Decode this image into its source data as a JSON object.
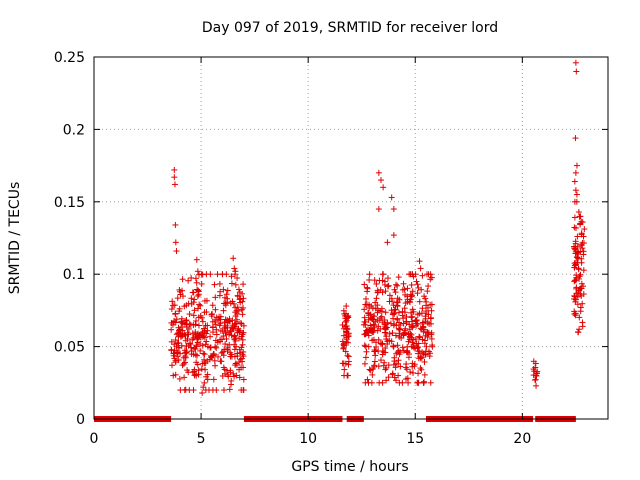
{
  "chart_data": {
    "type": "scatter",
    "title": "Day 097 of 2019, SRMTID for receiver lord",
    "xlabel": "GPS time / hours",
    "ylabel": "SRMTID / TECUs",
    "xlim": [
      0,
      24
    ],
    "ylim": [
      0,
      0.25
    ],
    "xticks": [
      0,
      5,
      10,
      15,
      20
    ],
    "xtick_labels": [
      "0",
      "5",
      "10",
      "15",
      "20"
    ],
    "yticks": [
      0,
      0.05,
      0.1,
      0.15,
      0.2,
      0.25
    ],
    "ytick_labels": [
      "0",
      "0.05",
      "0.1",
      "0.15",
      "0.2",
      "0.25"
    ],
    "grid": true,
    "marker": "+",
    "color": "#e00000",
    "zero_segments": [
      [
        0.0,
        3.6
      ],
      [
        7.0,
        11.6
      ],
      [
        11.8,
        12.6
      ],
      [
        15.5,
        20.5
      ],
      [
        20.6,
        22.5
      ]
    ],
    "clusters": [
      {
        "x": [
          3.6,
          7.0
        ],
        "y": [
          0.02,
          0.1
        ],
        "n": 420
      },
      {
        "x": [
          11.6,
          11.9
        ],
        "y": [
          0.03,
          0.078
        ],
        "n": 50
      },
      {
        "x": [
          12.6,
          15.8
        ],
        "y": [
          0.025,
          0.1
        ],
        "n": 400
      },
      {
        "x": [
          20.5,
          20.7
        ],
        "y": [
          0.022,
          0.044
        ],
        "n": 14
      },
      {
        "x": [
          22.4,
          22.9
        ],
        "y": [
          0.06,
          0.15
        ],
        "n": 90
      }
    ],
    "points": [
      {
        "x": 3.75,
        "y": 0.172
      },
      {
        "x": 3.75,
        "y": 0.167
      },
      {
        "x": 3.78,
        "y": 0.162
      },
      {
        "x": 3.8,
        "y": 0.134
      },
      {
        "x": 3.82,
        "y": 0.122
      },
      {
        "x": 3.85,
        "y": 0.116
      },
      {
        "x": 3.7,
        "y": 0.03
      },
      {
        "x": 4.8,
        "y": 0.11
      },
      {
        "x": 4.85,
        "y": 0.102
      },
      {
        "x": 5.05,
        "y": 0.018
      },
      {
        "x": 5.1,
        "y": 0.022
      },
      {
        "x": 6.5,
        "y": 0.111
      },
      {
        "x": 6.55,
        "y": 0.104
      },
      {
        "x": 6.6,
        "y": 0.102
      },
      {
        "x": 13.3,
        "y": 0.17
      },
      {
        "x": 13.4,
        "y": 0.165
      },
      {
        "x": 13.3,
        "y": 0.145
      },
      {
        "x": 13.5,
        "y": 0.16
      },
      {
        "x": 13.9,
        "y": 0.153
      },
      {
        "x": 14.0,
        "y": 0.145
      },
      {
        "x": 14.0,
        "y": 0.127
      },
      {
        "x": 13.7,
        "y": 0.122
      },
      {
        "x": 15.2,
        "y": 0.109
      },
      {
        "x": 15.25,
        "y": 0.104
      },
      {
        "x": 14.2,
        "y": 0.03
      },
      {
        "x": 14.4,
        "y": 0.025
      },
      {
        "x": 22.5,
        "y": 0.246
      },
      {
        "x": 22.52,
        "y": 0.24
      },
      {
        "x": 22.48,
        "y": 0.194
      },
      {
        "x": 22.55,
        "y": 0.175
      },
      {
        "x": 22.5,
        "y": 0.17
      },
      {
        "x": 22.45,
        "y": 0.164
      },
      {
        "x": 22.5,
        "y": 0.158
      },
      {
        "x": 22.55,
        "y": 0.155
      },
      {
        "x": 22.7,
        "y": 0.135
      },
      {
        "x": 22.75,
        "y": 0.12
      },
      {
        "x": 22.8,
        "y": 0.118
      },
      {
        "x": 22.6,
        "y": 0.06
      },
      {
        "x": 22.65,
        "y": 0.062
      }
    ]
  }
}
